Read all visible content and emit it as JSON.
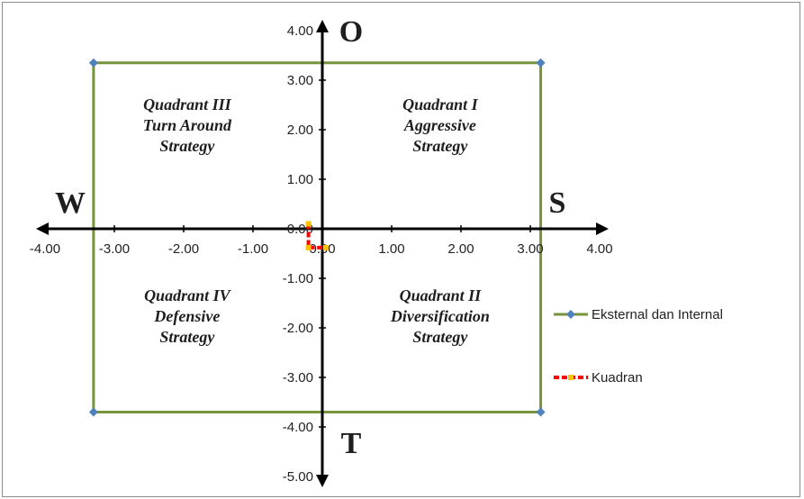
{
  "chart_data": {
    "type": "scatter",
    "title": "",
    "xlabel": "",
    "ylabel": "",
    "xlim": [
      -4,
      4
    ],
    "ylim": [
      -5,
      4
    ],
    "x_ticks": [
      -4,
      -3,
      -2,
      -1,
      0,
      1,
      2,
      3,
      4
    ],
    "y_ticks": [
      4,
      3,
      2,
      1,
      0,
      -1,
      -2,
      -3,
      -4,
      -5
    ],
    "x_tick_labels": [
      "-4.00",
      "-3.00",
      "-2.00",
      "-1.00",
      "0.00",
      "1.00",
      "2.00",
      "3.00",
      "4.00"
    ],
    "y_tick_labels": [
      "4.00",
      "3.00",
      "2.00",
      "1.00",
      "0.00",
      "-1.00",
      "-2.00",
      "-3.00",
      "-4.00",
      "-5.00"
    ],
    "grid": false,
    "legend_position": "right",
    "series": [
      {
        "name": "Eksternal dan Internal",
        "color": "#77933c",
        "marker_color": "#4f81bd",
        "x": [
          -3.3,
          3.15,
          3.15,
          -3.3,
          -3.3
        ],
        "y": [
          3.35,
          3.35,
          -3.7,
          -3.7,
          3.35
        ]
      },
      {
        "name": "Kuadran",
        "color": "#ff0000",
        "marker_color": "#ffc000",
        "x": [
          -0.2,
          -0.2,
          0.05
        ],
        "y": [
          0.1,
          -0.38,
          -0.38
        ]
      }
    ],
    "direction_labels": {
      "top": "O",
      "bottom": "T",
      "left": "W",
      "right": "S"
    },
    "quadrants": [
      {
        "id": "q3",
        "lines": [
          "Quadrant III",
          "Turn Around",
          "Strategy"
        ],
        "x": -1.95,
        "y": 2.4
      },
      {
        "id": "q1",
        "lines": [
          "Quadrant I",
          "Aggressive",
          "Strategy"
        ],
        "x": 1.7,
        "y": 2.4
      },
      {
        "id": "q4",
        "lines": [
          "Quadrant IV",
          "Defensive",
          "Strategy"
        ],
        "x": -1.95,
        "y": -1.45
      },
      {
        "id": "q2",
        "lines": [
          "Quadrant II",
          "Diversification",
          "Strategy"
        ],
        "x": 1.7,
        "y": -1.45
      }
    ]
  }
}
